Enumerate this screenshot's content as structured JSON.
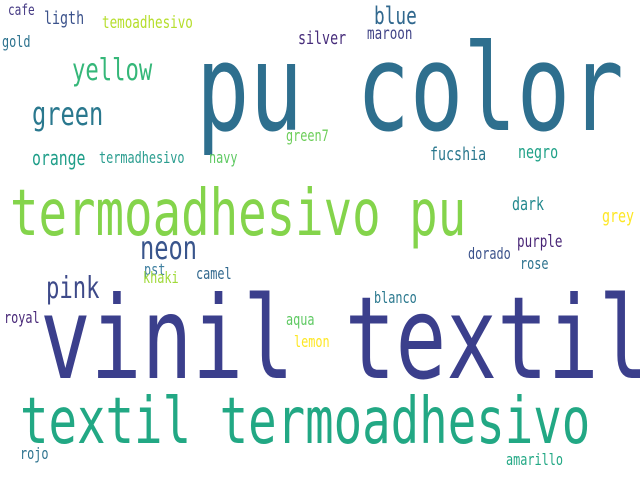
{
  "words": [
    {
      "text": "vinil textil",
      "color": "#3b3f8c"
    },
    {
      "text": "pu color",
      "color": "#2e6f8e"
    },
    {
      "text": "termoadhesivo pu",
      "color": "#84d44b"
    },
    {
      "text": "textil termoadhesivo",
      "color": "#22a884"
    },
    {
      "text": "neon",
      "color": "#39558c"
    },
    {
      "text": "pink",
      "color": "#3e4a89"
    },
    {
      "text": "yellow",
      "color": "#35b779"
    },
    {
      "text": "green",
      "color": "#2a788e"
    },
    {
      "text": "blue",
      "color": "#31688e"
    },
    {
      "text": "orange",
      "color": "#1f9e89"
    },
    {
      "text": "termadhesivo",
      "color": "#2a9d8f"
    },
    {
      "text": "navy",
      "color": "#5ec962"
    },
    {
      "text": "green7",
      "color": "#6cce59"
    },
    {
      "text": "fucshia",
      "color": "#2a788e"
    },
    {
      "text": "negro",
      "color": "#1fa187"
    },
    {
      "text": "cafe",
      "color": "#443983"
    },
    {
      "text": "ligth",
      "color": "#3b528b"
    },
    {
      "text": "temoadhesivo",
      "color": "#b5de2b"
    },
    {
      "text": "gold",
      "color": "#2c728e"
    },
    {
      "text": "silver",
      "color": "#472d7b"
    },
    {
      "text": "maroon",
      "color": "#414487"
    },
    {
      "text": "dark",
      "color": "#23898e"
    },
    {
      "text": "grey",
      "color": "#fde725"
    },
    {
      "text": "purple",
      "color": "#482576"
    },
    {
      "text": "dorado",
      "color": "#3b528b"
    },
    {
      "text": "rose",
      "color": "#2c728e"
    },
    {
      "text": "pst",
      "color": "#3e7fa0"
    },
    {
      "text": "khaki",
      "color": "#a0da39"
    },
    {
      "text": "camel",
      "color": "#31688e"
    },
    {
      "text": "blanco",
      "color": "#2a788e"
    },
    {
      "text": "aqua",
      "color": "#5ec962"
    },
    {
      "text": "lemon",
      "color": "#fde725"
    },
    {
      "text": "royal",
      "color": "#482878"
    },
    {
      "text": "rojo",
      "color": "#2c728e"
    },
    {
      "text": "amarillo",
      "color": "#22a884"
    }
  ]
}
